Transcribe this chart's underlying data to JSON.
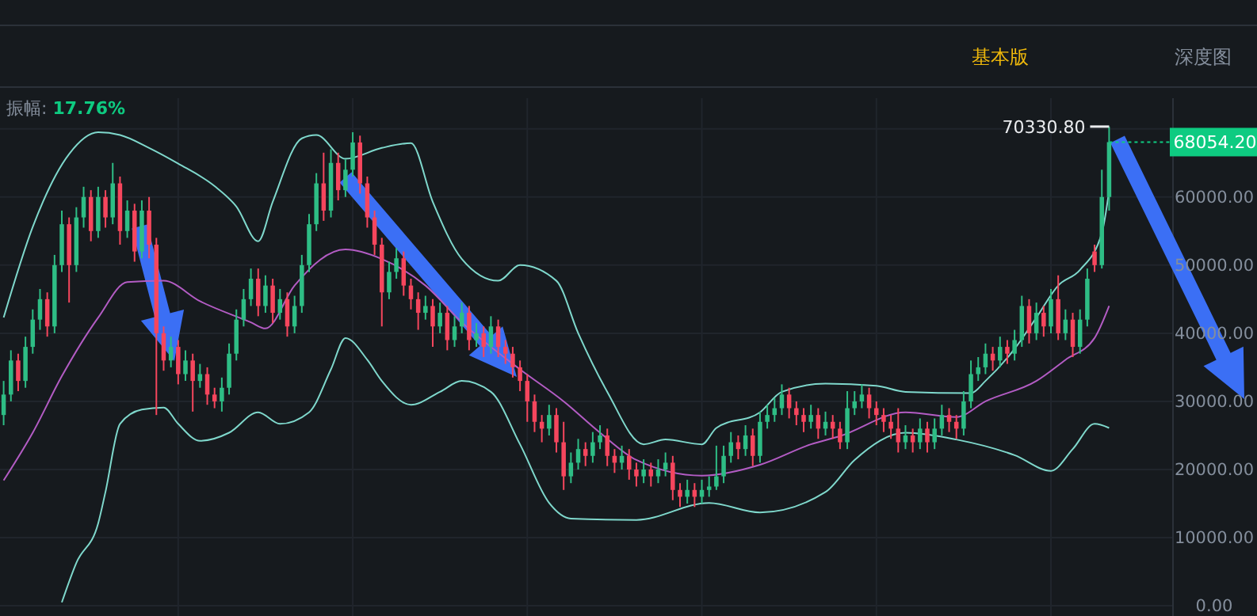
{
  "chart_data": {
    "type": "candlestick",
    "categories": [
      null,
      null,
      null,
      null,
      null,
      null,
      null,
      null,
      null,
      null,
      null,
      null,
      null,
      null,
      null,
      null,
      null,
      null,
      null,
      null,
      null,
      null,
      null,
      null,
      null,
      null,
      null,
      null,
      null,
      null,
      null,
      null,
      null,
      null,
      null,
      null,
      null,
      null,
      null,
      null,
      null,
      null,
      null,
      null,
      null,
      null,
      null,
      null,
      null,
      null,
      null,
      null,
      null,
      null,
      null,
      null,
      null,
      null,
      null,
      null,
      null,
      null,
      null,
      null,
      null,
      null,
      null,
      null,
      null,
      null,
      null,
      null,
      null,
      null,
      null,
      null,
      null,
      null,
      null,
      null,
      null,
      null,
      null,
      null,
      null,
      null,
      null,
      null,
      null,
      null,
      null,
      null,
      null,
      null,
      null,
      null,
      null,
      null,
      null,
      null,
      null,
      null,
      null,
      null,
      null,
      null,
      null,
      null,
      null,
      null,
      null,
      null,
      null,
      null,
      null,
      null,
      null,
      null,
      null,
      null,
      null,
      null,
      null,
      null,
      null,
      null,
      null,
      null,
      null,
      null,
      null,
      null,
      null,
      null,
      null,
      null,
      null,
      null,
      null,
      null,
      null,
      null,
      null,
      null,
      null,
      null,
      null,
      null,
      null,
      null,
      null,
      null,
      null
    ],
    "ohlc": [
      [
        28000,
        33000,
        26500,
        31000
      ],
      [
        31000,
        37500,
        30000,
        36000
      ],
      [
        36000,
        37000,
        31500,
        33000
      ],
      [
        33000,
        39500,
        32000,
        38000
      ],
      [
        38000,
        43500,
        37000,
        42000
      ],
      [
        42000,
        46500,
        40500,
        45000
      ],
      [
        45000,
        46000,
        39500,
        41000
      ],
      [
        41000,
        51500,
        40000,
        50000
      ],
      [
        50000,
        58000,
        49000,
        56000
      ],
      [
        56000,
        57000,
        44500,
        50000
      ],
      [
        50000,
        58500,
        49000,
        57000
      ],
      [
        57000,
        61500,
        55500,
        60000
      ],
      [
        60000,
        61000,
        53500,
        55000
      ],
      [
        55000,
        61500,
        54000,
        60000
      ],
      [
        60000,
        61000,
        55500,
        57000
      ],
      [
        57000,
        65000,
        56000,
        62000
      ],
      [
        62000,
        63000,
        53000,
        55000
      ],
      [
        55000,
        59500,
        54000,
        58000
      ],
      [
        58000,
        59000,
        50500,
        52000
      ],
      [
        52000,
        59500,
        51000,
        58000
      ],
      [
        58000,
        60000,
        51000,
        53000
      ],
      [
        53000,
        54000,
        28000,
        40000
      ],
      [
        40000,
        41000,
        34500,
        36000
      ],
      [
        36000,
        39500,
        35000,
        38000
      ],
      [
        38000,
        39000,
        32500,
        34000
      ],
      [
        34000,
        37500,
        33000,
        36000
      ],
      [
        36000,
        37000,
        28500,
        33000
      ],
      [
        33000,
        35500,
        32000,
        34000
      ],
      [
        34000,
        35000,
        29500,
        31000
      ],
      [
        31000,
        32000,
        29000,
        30000
      ],
      [
        30000,
        33500,
        28500,
        32000
      ],
      [
        32000,
        38500,
        31000,
        37000
      ],
      [
        37000,
        43500,
        36000,
        42000
      ],
      [
        42000,
        46500,
        41000,
        45000
      ],
      [
        45000,
        49500,
        44000,
        48000
      ],
      [
        48000,
        49500,
        42500,
        44000
      ],
      [
        44000,
        48500,
        43000,
        47000
      ],
      [
        47000,
        48000,
        41500,
        43000
      ],
      [
        43000,
        46500,
        42000,
        45000
      ],
      [
        45000,
        46000,
        39500,
        41000
      ],
      [
        41000,
        45500,
        40000,
        44000
      ],
      [
        44000,
        51500,
        43000,
        50000
      ],
      [
        50000,
        57500,
        49000,
        56000
      ],
      [
        56000,
        63500,
        55000,
        62000
      ],
      [
        62000,
        66500,
        56500,
        58000
      ],
      [
        58000,
        67000,
        57000,
        65000
      ],
      [
        65000,
        66500,
        59500,
        61000
      ],
      [
        61000,
        65500,
        60000,
        64000
      ],
      [
        64000,
        69500,
        63000,
        68000
      ],
      [
        68000,
        69000,
        60500,
        62000
      ],
      [
        62000,
        63000,
        55500,
        57000
      ],
      [
        57000,
        58000,
        51500,
        53000
      ],
      [
        53000,
        54000,
        41000,
        46000
      ],
      [
        46000,
        50500,
        45000,
        49000
      ],
      [
        49000,
        52500,
        48000,
        51000
      ],
      [
        51000,
        52000,
        45500,
        47000
      ],
      [
        47000,
        48000,
        43500,
        45000
      ],
      [
        45000,
        46000,
        40500,
        43000
      ],
      [
        43000,
        45500,
        42000,
        44000
      ],
      [
        44000,
        45000,
        38000,
        41000
      ],
      [
        41000,
        44500,
        40000,
        43000
      ],
      [
        43000,
        44000,
        37500,
        39000
      ],
      [
        39000,
        42500,
        38000,
        41000
      ],
      [
        41000,
        44500,
        40000,
        43000
      ],
      [
        43000,
        44000,
        37500,
        39000
      ],
      [
        39000,
        41500,
        38000,
        40000
      ],
      [
        40000,
        41000,
        36500,
        38000
      ],
      [
        38000,
        42500,
        37000,
        41000
      ],
      [
        41000,
        42000,
        36500,
        38000
      ],
      [
        38000,
        39000,
        35500,
        37000
      ],
      [
        37000,
        38000,
        33500,
        35000
      ],
      [
        35000,
        36000,
        31500,
        33000
      ],
      [
        33000,
        34000,
        27000,
        30000
      ],
      [
        30000,
        31000,
        25500,
        27000
      ],
      [
        27000,
        28000,
        24000,
        26000
      ],
      [
        26000,
        29500,
        25000,
        28000
      ],
      [
        28000,
        29000,
        22500,
        24000
      ],
      [
        24000,
        27000,
        17000,
        19000
      ],
      [
        19000,
        22500,
        18000,
        21000
      ],
      [
        21000,
        24500,
        20000,
        23000
      ],
      [
        23000,
        24000,
        20500,
        22000
      ],
      [
        22000,
        25500,
        21000,
        24000
      ],
      [
        24000,
        26500,
        23000,
        25000
      ],
      [
        25000,
        26000,
        20500,
        22000
      ],
      [
        22000,
        23000,
        19500,
        21000
      ],
      [
        21000,
        23500,
        20000,
        22000
      ],
      [
        22000,
        23000,
        18500,
        20000
      ],
      [
        20000,
        21000,
        17500,
        19000
      ],
      [
        19000,
        21500,
        18000,
        20000
      ],
      [
        20000,
        21000,
        17500,
        19000
      ],
      [
        19000,
        21500,
        18000,
        20000
      ],
      [
        20000,
        22500,
        19000,
        21000
      ],
      [
        21000,
        22000,
        15500,
        17000
      ],
      [
        17000,
        18000,
        14500,
        16000
      ],
      [
        16000,
        18500,
        15000,
        17000
      ],
      [
        17000,
        18000,
        14500,
        16000
      ],
      [
        16000,
        18500,
        15000,
        17000
      ],
      [
        17000,
        19000,
        16000,
        17500
      ],
      [
        17500,
        23500,
        17000,
        19000
      ],
      [
        19000,
        23500,
        18000,
        22000
      ],
      [
        22000,
        25500,
        21000,
        24000
      ],
      [
        24000,
        25000,
        21500,
        23000
      ],
      [
        23000,
        26500,
        22000,
        25000
      ],
      [
        25000,
        26000,
        20500,
        22000
      ],
      [
        22000,
        28500,
        21000,
        27000
      ],
      [
        27000,
        29500,
        26000,
        28000
      ],
      [
        28000,
        30500,
        27000,
        29000
      ],
      [
        29000,
        32500,
        28000,
        31000
      ],
      [
        31000,
        32000,
        27500,
        29000
      ],
      [
        29000,
        30000,
        26500,
        28000
      ],
      [
        28000,
        29000,
        25500,
        27000
      ],
      [
        27000,
        29500,
        26000,
        28000
      ],
      [
        28000,
        29000,
        24500,
        26000
      ],
      [
        26000,
        28500,
        25000,
        27000
      ],
      [
        27000,
        28000,
        24500,
        26000
      ],
      [
        26000,
        27000,
        23000,
        24000
      ],
      [
        24000,
        31500,
        23000,
        29000
      ],
      [
        29000,
        31500,
        28000,
        30000
      ],
      [
        30000,
        32500,
        29000,
        31000
      ],
      [
        31000,
        32000,
        27500,
        29000
      ],
      [
        29000,
        30000,
        26500,
        28000
      ],
      [
        28000,
        29000,
        25500,
        27000
      ],
      [
        27000,
        28000,
        24500,
        26000
      ],
      [
        26000,
        29000,
        22500,
        24000
      ],
      [
        24000,
        26500,
        23000,
        25000
      ],
      [
        25000,
        26000,
        22500,
        24000
      ],
      [
        24000,
        27500,
        23000,
        26000
      ],
      [
        26000,
        27000,
        22500,
        24000
      ],
      [
        24000,
        27500,
        23000,
        26000
      ],
      [
        26000,
        29500,
        25000,
        28000
      ],
      [
        28000,
        29000,
        25500,
        27000
      ],
      [
        27000,
        28000,
        24500,
        26000
      ],
      [
        26000,
        31500,
        25000,
        30000
      ],
      [
        30000,
        36000,
        29000,
        34000
      ],
      [
        34000,
        36500,
        33000,
        35000
      ],
      [
        35000,
        38500,
        34000,
        37000
      ],
      [
        37000,
        38000,
        34500,
        36000
      ],
      [
        36000,
        39500,
        35000,
        38000
      ],
      [
        38000,
        39000,
        35500,
        37000
      ],
      [
        37000,
        40500,
        36000,
        39000
      ],
      [
        39000,
        45500,
        38000,
        44000
      ],
      [
        44000,
        45000,
        38500,
        40000
      ],
      [
        40000,
        44500,
        39000,
        43000
      ],
      [
        43000,
        44000,
        39500,
        41000
      ],
      [
        41000,
        46500,
        40000,
        45000
      ],
      [
        45000,
        48500,
        39000,
        40000
      ],
      [
        40000,
        43500,
        39000,
        42000
      ],
      [
        42000,
        43000,
        36500,
        38000
      ],
      [
        38000,
        43500,
        37000,
        42000
      ],
      [
        42000,
        49500,
        41000,
        48000
      ],
      [
        52000,
        53000,
        49000,
        50000
      ],
      [
        50000,
        64000,
        49500,
        60000
      ],
      [
        60000,
        70330.8,
        58000,
        68054.2
      ]
    ],
    "series": [
      {
        "type": "line",
        "color": "#7fd8cc",
        "values": [
          42300,
          null,
          null,
          null,
          55600,
          null,
          null,
          null,
          null,
          66300,
          null,
          null,
          null,
          69500,
          null,
          null,
          69100,
          null,
          null,
          null,
          67200,
          null,
          null,
          null,
          64900,
          null,
          null,
          null,
          null,
          61600,
          null,
          null,
          58600,
          null,
          null,
          53500,
          null,
          59300,
          null,
          null,
          null,
          68600,
          null,
          69100,
          null,
          null,
          null,
          65600,
          null,
          null,
          null,
          null,
          67200,
          null,
          null,
          null,
          67900,
          null,
          null,
          59300,
          null,
          null,
          null,
          50900,
          null,
          null,
          null,
          null,
          47700,
          null,
          null,
          50000,
          null,
          null,
          null,
          null,
          47700,
          null,
          null,
          40000,
          null,
          null,
          null,
          31400,
          null,
          null,
          null,
          null,
          23700,
          null,
          null,
          24400,
          null,
          null,
          null,
          null,
          23700,
          null,
          26100,
          null,
          null,
          null,
          null,
          null,
          28400,
          null,
          null,
          31400,
          null,
          null,
          null,
          null,
          null,
          32600,
          null,
          null,
          null,
          null,
          null,
          null,
          32300,
          null,
          null,
          null,
          31400,
          null,
          null,
          null,
          null,
          null,
          null,
          null,
          null,
          31200,
          null,
          33000,
          null,
          null,
          null,
          37700,
          null,
          null,
          42300,
          null,
          null,
          47000,
          null,
          null,
          49300,
          null,
          null,
          54700,
          60900
        ]
      },
      {
        "type": "line",
        "color": "#b35cc4",
        "values": [
          18400,
          null,
          null,
          null,
          25400,
          null,
          null,
          null,
          33700,
          null,
          null,
          null,
          null,
          42300,
          null,
          null,
          null,
          47500,
          null,
          null,
          null,
          null,
          47700,
          null,
          null,
          null,
          null,
          44700,
          null,
          null,
          null,
          null,
          null,
          null,
          41600,
          null,
          40700,
          null,
          null,
          null,
          47000,
          null,
          null,
          null,
          null,
          null,
          null,
          52300,
          null,
          null,
          null,
          null,
          50900,
          null,
          null,
          null,
          null,
          null,
          47000,
          null,
          null,
          null,
          null,
          41600,
          null,
          null,
          null,
          null,
          null,
          null,
          null,
          34700,
          null,
          null,
          null,
          null,
          null,
          30000,
          null,
          null,
          null,
          null,
          25400,
          null,
          null,
          null,
          null,
          21400,
          null,
          null,
          null,
          null,
          null,
          null,
          null,
          null,
          19100,
          null,
          null,
          null,
          null,
          null,
          null,
          null,
          20700,
          null,
          null,
          null,
          null,
          null,
          null,
          23700,
          null,
          null,
          null,
          24900,
          null,
          null,
          null,
          null,
          null,
          null,
          null,
          null,
          28400,
          null,
          null,
          null,
          null,
          null,
          null,
          27700,
          null,
          null,
          null,
          30000,
          null,
          null,
          null,
          null,
          null,
          null,
          33000,
          null,
          null,
          null,
          36100,
          null,
          null,
          null,
          39300,
          null,
          44000
        ]
      },
      {
        "type": "line",
        "color": "#7fd8cc",
        "values": [
          null,
          null,
          null,
          null,
          null,
          null,
          null,
          null,
          500,
          null,
          6300,
          null,
          null,
          12100,
          16700,
          null,
          26700,
          null,
          null,
          28800,
          null,
          null,
          29100,
          null,
          26700,
          null,
          null,
          24200,
          null,
          null,
          null,
          25400,
          null,
          null,
          null,
          28400,
          null,
          null,
          26700,
          null,
          null,
          null,
          28400,
          null,
          null,
          34700,
          null,
          39300,
          null,
          null,
          36100,
          null,
          33000,
          null,
          null,
          null,
          29500,
          null,
          null,
          null,
          31400,
          null,
          null,
          33000,
          null,
          null,
          null,
          31400,
          null,
          null,
          null,
          23700,
          null,
          null,
          null,
          15100,
          null,
          null,
          12800,
          null,
          null,
          null,
          null,
          null,
          null,
          null,
          null,
          12600,
          null,
          null,
          null,
          null,
          null,
          null,
          null,
          null,
          null,
          15100,
          null,
          null,
          null,
          null,
          null,
          null,
          13700,
          null,
          null,
          null,
          null,
          null,
          null,
          null,
          null,
          16700,
          null,
          null,
          null,
          21400,
          null,
          null,
          null,
          null,
          null,
          null,
          25400,
          null,
          null,
          null,
          null,
          null,
          null,
          24400,
          null,
          null,
          null,
          null,
          null,
          null,
          null,
          22100,
          null,
          null,
          null,
          null,
          19800,
          null,
          null,
          23000,
          null,
          null,
          26700,
          null,
          26100
        ]
      }
    ],
    "ylim": [
      -1500,
      74500
    ],
    "yticks": [
      {
        "value": 0,
        "label": "0.00"
      },
      {
        "value": 10000,
        "label": "10000.00"
      },
      {
        "value": 20000,
        "label": "20000.00"
      },
      {
        "value": 30000,
        "label": "30000.00"
      },
      {
        "value": 40000,
        "label": "40000.00"
      },
      {
        "value": 50000,
        "label": "50000.00"
      },
      {
        "value": 60000,
        "label": "60000.00"
      },
      {
        "value": 70000,
        "label": null
      }
    ],
    "grid": true,
    "tick_labels": "y",
    "ref_lines": [
      {
        "axis": "y",
        "value": 68054.2,
        "label": "68054.20",
        "color": "#0ecb81"
      }
    ],
    "annotations": [
      "70330.80",
      "振幅: 17.76%",
      "基本版",
      "深度图"
    ]
  }
}
